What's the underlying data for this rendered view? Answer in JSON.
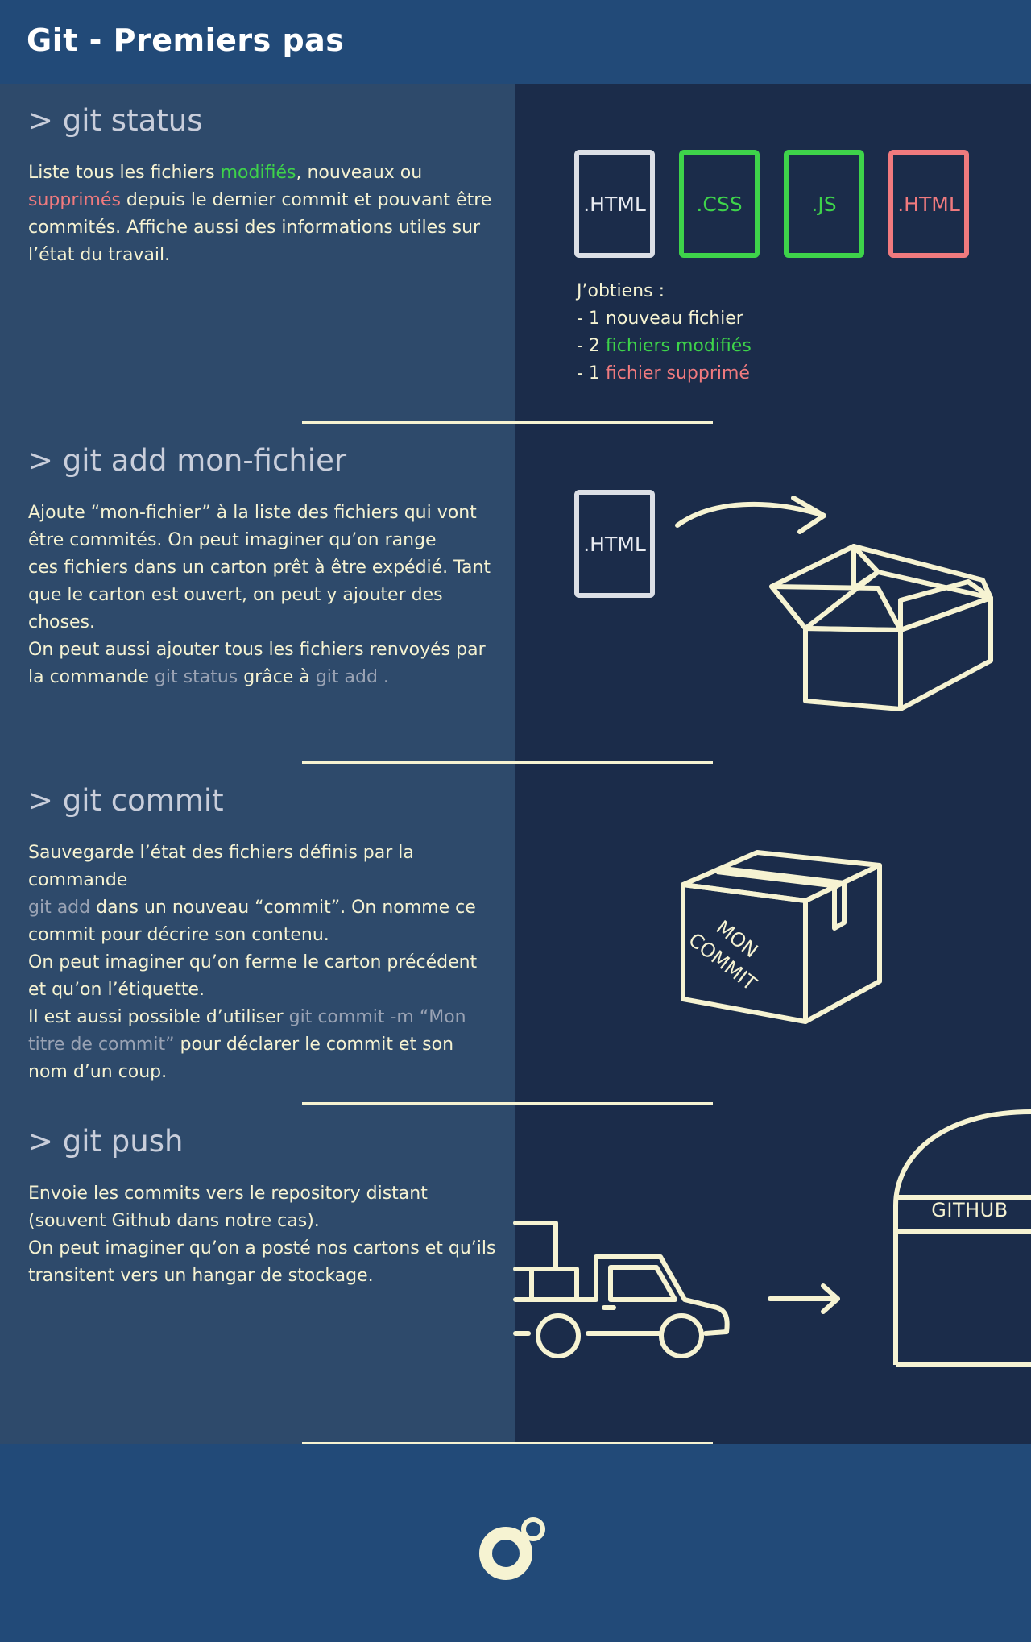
{
  "header": {
    "title": "Git - Premiers pas"
  },
  "colors": {
    "header_bg": "#224a78",
    "left_bg": "#2e4a6b",
    "right_bg": "#1b2c4a",
    "cream": "#f6f3d2",
    "green": "#3ed34a",
    "red": "#f07a7e",
    "muted": "#9aa3b4"
  },
  "sections": [
    {
      "command": "> git status",
      "desc": [
        {
          "t": "Liste tous les fichiers ",
          "s": ""
        },
        {
          "t": "modifiés",
          "s": "g"
        },
        {
          "t": ", nouveaux ou ",
          "s": ""
        },
        {
          "t": "br",
          "s": "br"
        },
        {
          "t": "supprimés",
          "s": "r"
        },
        {
          "t": " depuis le dernier commit et pouvant être ",
          "s": ""
        },
        {
          "t": "br",
          "s": "br"
        },
        {
          "t": "commités. Affiche aussi des informations utiles sur ",
          "s": ""
        },
        {
          "t": "br",
          "s": "br"
        },
        {
          "t": "l’état du travail.",
          "s": ""
        }
      ],
      "files": [
        ".HTML",
        ".CSS",
        ".JS",
        ".HTML"
      ],
      "result": {
        "intro": "J’obtiens :",
        "line1": "- 1 nouveau fichier",
        "line2_prefix": "- 2 ",
        "line2_hl": "fichiers modifiés",
        "line3_prefix": "- 1 ",
        "line3_hl": "fichier supprimé"
      }
    },
    {
      "command": "> git add mon-fichier",
      "desc": [
        {
          "t": "Ajoute “mon-fichier” à la liste des fichiers qui vont ",
          "s": ""
        },
        {
          "t": "br",
          "s": "br"
        },
        {
          "t": "être commités. On peut imaginer qu’on range ",
          "s": ""
        },
        {
          "t": "br",
          "s": "br"
        },
        {
          "t": "ces fichiers dans un carton prêt à être expédié. Tant ",
          "s": ""
        },
        {
          "t": "br",
          "s": "br"
        },
        {
          "t": "que le carton est ouvert, on peut y ajouter des choses. ",
          "s": ""
        },
        {
          "t": "br",
          "s": "br"
        },
        {
          "t": "On peut aussi ajouter tous les fichiers renvoyés par ",
          "s": ""
        },
        {
          "t": "br",
          "s": "br"
        },
        {
          "t": "la commande ",
          "s": ""
        },
        {
          "t": "git status",
          "s": "m"
        },
        {
          "t": " grâce à ",
          "s": ""
        },
        {
          "t": "git add .",
          "s": "m"
        }
      ],
      "file": ".HTML"
    },
    {
      "command": "> git commit",
      "desc": [
        {
          "t": "Sauvegarde l’état des fichiers définis par la commande ",
          "s": ""
        },
        {
          "t": "br",
          "s": "br"
        },
        {
          "t": "git add",
          "s": "m"
        },
        {
          "t": " dans un nouveau “commit”. On nomme ce ",
          "s": ""
        },
        {
          "t": "br",
          "s": "br"
        },
        {
          "t": "commit pour décrire son contenu.",
          "s": ""
        },
        {
          "t": "br",
          "s": "br"
        },
        {
          "t": "On peut imaginer qu’on ferme le carton précédent ",
          "s": ""
        },
        {
          "t": "br",
          "s": "br"
        },
        {
          "t": "et qu’on l’étiquette.",
          "s": ""
        },
        {
          "t": "br",
          "s": "br"
        },
        {
          "t": "Il est aussi possible d’utiliser ",
          "s": ""
        },
        {
          "t": "git commit -m “Mon ",
          "s": "m"
        },
        {
          "t": "br",
          "s": "br"
        },
        {
          "t": "titre de commit”",
          "s": "m"
        },
        {
          "t": " pour déclarer le commit et son ",
          "s": ""
        },
        {
          "t": "br",
          "s": "br"
        },
        {
          "t": "nom d’un coup.",
          "s": ""
        }
      ],
      "box_label_1": "MON",
      "box_label_2": "COMMIT"
    },
    {
      "command": "> git push",
      "desc": [
        {
          "t": "Envoie les commits vers le repository distant ",
          "s": ""
        },
        {
          "t": "br",
          "s": "br"
        },
        {
          "t": "(souvent Github dans notre cas).",
          "s": ""
        },
        {
          "t": "br",
          "s": "br"
        },
        {
          "t": "On peut imaginer qu’on a posté nos cartons et qu’ils ",
          "s": ""
        },
        {
          "t": "br",
          "s": "br"
        },
        {
          "t": "transitent vers un hangar de stockage.",
          "s": ""
        }
      ],
      "hangar_label": "GITHUB"
    }
  ]
}
